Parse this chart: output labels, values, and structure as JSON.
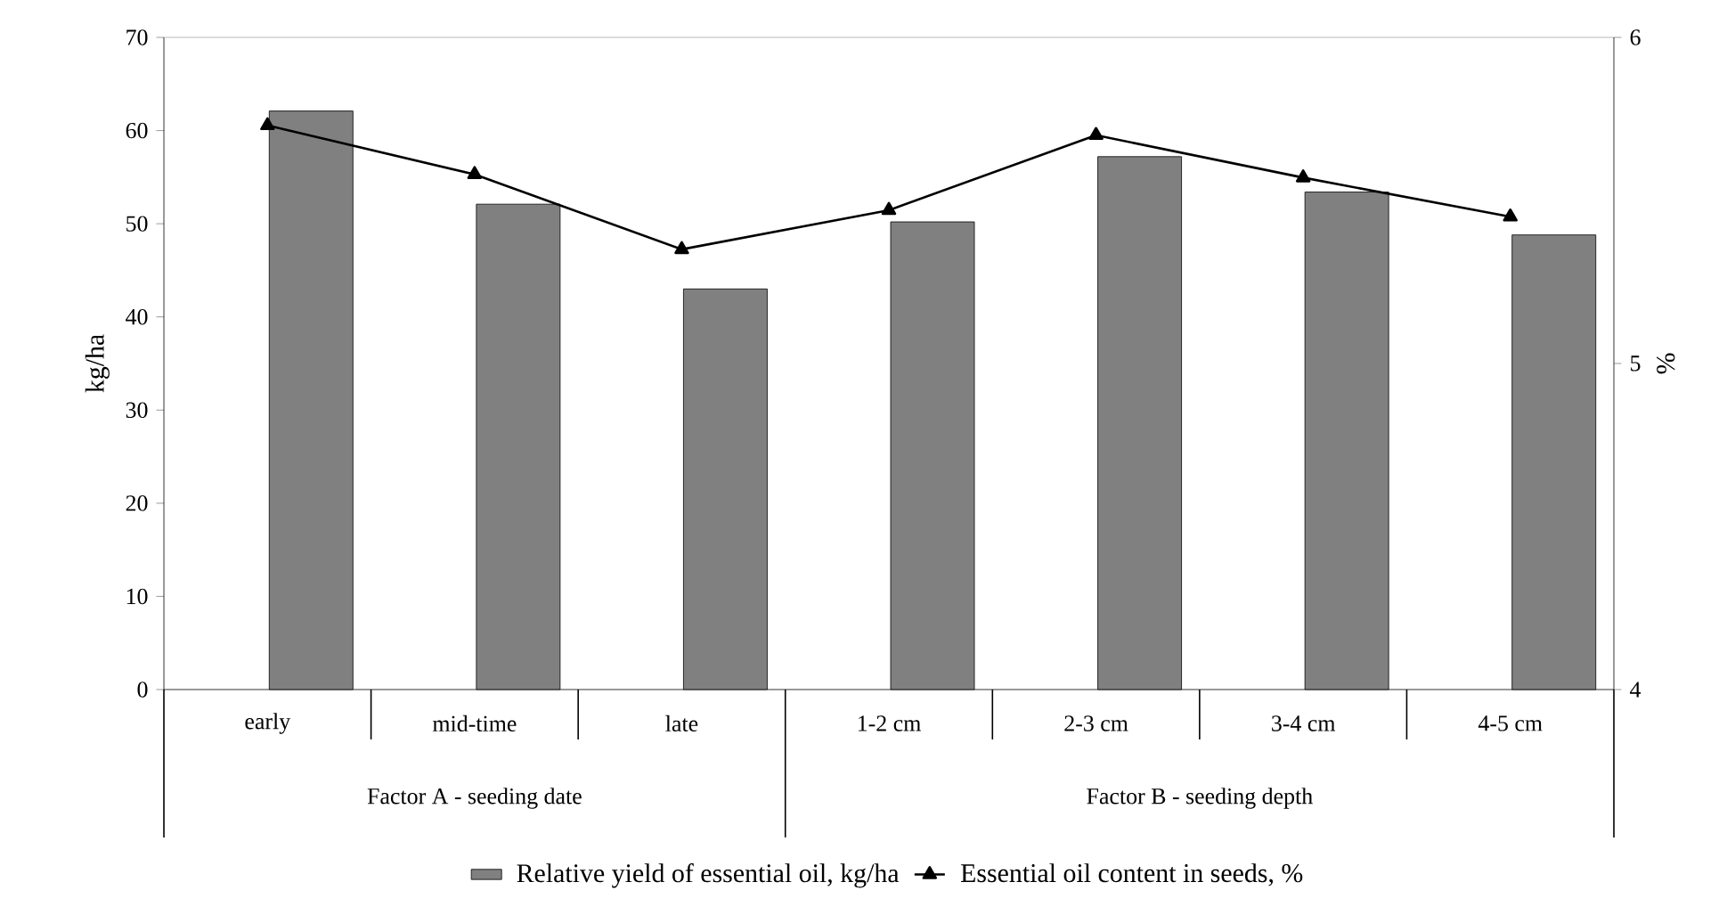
{
  "chart_data": {
    "type": "bar",
    "categories": [
      "early",
      "mid-time",
      "late",
      "1-2 cm",
      "2-3 cm",
      "3-4 cm",
      "4-5 cm"
    ],
    "series": [
      {
        "name": "Relative yield of essential oil, kg/ha",
        "color": "#808080",
        "values": [
          62.1,
          52.1,
          43.0,
          50.2,
          57.2,
          53.4,
          48.8
        ]
      },
      {
        "name": "Essential oil content in seeds, %",
        "type": "line",
        "axis": "y2",
        "color": "#000000",
        "marker": "triangle",
        "values": [
          5.73,
          5.58,
          5.35,
          5.47,
          5.7,
          5.57,
          5.45
        ]
      }
    ],
    "ylabel": "kg/ha",
    "y2label": "%",
    "ylim": [
      0,
      70
    ],
    "yticks": [
      0,
      10,
      20,
      30,
      40,
      50,
      60,
      70
    ],
    "y2lim": [
      4,
      6
    ],
    "y2ticks": [
      4,
      5,
      6
    ],
    "annotations": [
      "Factor A - seeding date",
      "Factor B - seeding depth"
    ],
    "legend": "bottom"
  }
}
